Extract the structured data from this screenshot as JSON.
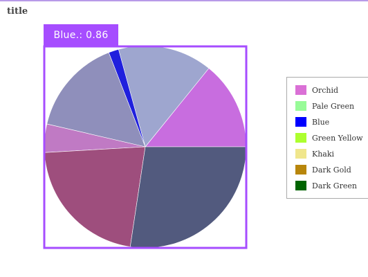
{
  "title": "title",
  "tooltip": {
    "label": "Blue",
    "text": "Blue.: 0.86"
  },
  "colors": {
    "highlight": "#a64dff",
    "tooltip_bg": "#a64dff"
  },
  "chart_data": {
    "type": "pie",
    "title": "title",
    "legend_position": "right",
    "slices": [
      {
        "name": "Orchid",
        "value": 7.5,
        "legend_color": "#da70d6",
        "color": "#c86ddf"
      },
      {
        "name": "Pale Green",
        "value": 8.0,
        "legend_color": "#98fb98",
        "color": "#9ea6cf"
      },
      {
        "name": "Blue",
        "value": 0.86,
        "legend_color": "#0000ff",
        "color": "#2020dd"
      },
      {
        "name": "Green Yellow",
        "value": 8.2,
        "legend_color": "#adff2f",
        "color": "#8f8fbb"
      },
      {
        "name": "Khaki",
        "value": 2.4,
        "legend_color": "#f0e68c",
        "color": "#c07ac4"
      },
      {
        "name": "Dark Gold",
        "value": 11.5,
        "legend_color": "#b8860b",
        "color": "#9e4e7d"
      },
      {
        "name": "Dark Green",
        "value": 14.5,
        "legend_color": "#006400",
        "color": "#525a7e"
      }
    ]
  }
}
